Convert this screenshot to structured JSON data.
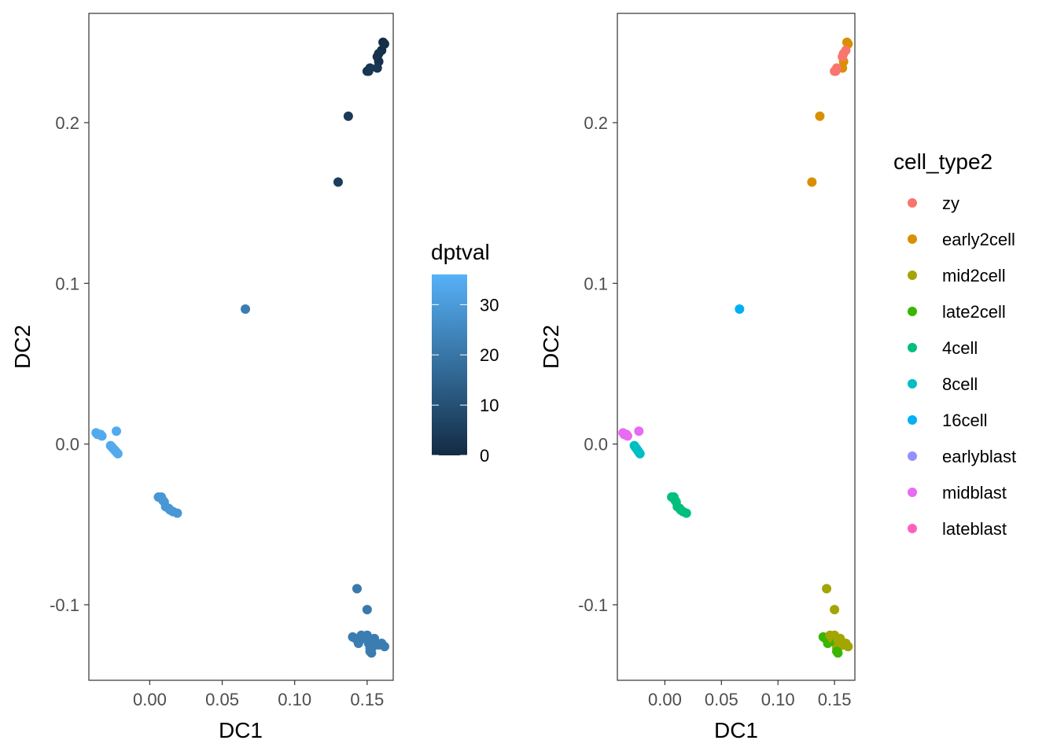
{
  "chart_data": [
    {
      "type": "scatter",
      "xlabel": "DC1",
      "ylabel": "DC2",
      "xlim": [
        -0.042,
        0.168
      ],
      "ylim": [
        -0.147,
        0.268
      ],
      "xticks": [
        0.0,
        0.05,
        0.1,
        0.15
      ],
      "xtick_labels": [
        "0.00",
        "0.05",
        "0.10",
        "0.15"
      ],
      "yticks": [
        -0.1,
        0.0,
        0.1,
        0.2
      ],
      "ytick_labels": [
        "-0.1",
        "0.0",
        "0.1",
        "0.2"
      ],
      "grid": false,
      "color_by": "dptval",
      "legend": {
        "type": "colorbar",
        "title": "dptval",
        "range": [
          0,
          36
        ],
        "ticks": [
          0,
          10,
          20,
          30
        ],
        "tick_labels": [
          "0",
          "10",
          "20",
          "30"
        ],
        "low_color": "#132b43",
        "high_color": "#56b1f7",
        "placement": "right"
      },
      "points": [
        {
          "x": 0.161,
          "y": 0.25,
          "v": 0
        },
        {
          "x": 0.162,
          "y": 0.249,
          "v": 1
        },
        {
          "x": 0.16,
          "y": 0.245,
          "v": 1
        },
        {
          "x": 0.158,
          "y": 0.243,
          "v": 2
        },
        {
          "x": 0.157,
          "y": 0.241,
          "v": 2
        },
        {
          "x": 0.158,
          "y": 0.238,
          "v": 2
        },
        {
          "x": 0.157,
          "y": 0.234,
          "v": 3
        },
        {
          "x": 0.152,
          "y": 0.234,
          "v": 3
        },
        {
          "x": 0.15,
          "y": 0.232,
          "v": 3
        },
        {
          "x": 0.151,
          "y": 0.232,
          "v": 3
        },
        {
          "x": 0.137,
          "y": 0.204,
          "v": 4
        },
        {
          "x": 0.13,
          "y": 0.163,
          "v": 5
        },
        {
          "x": 0.066,
          "y": 0.084,
          "v": 22
        },
        {
          "x": 0.143,
          "y": -0.09,
          "v": 21
        },
        {
          "x": 0.15,
          "y": -0.103,
          "v": 21
        },
        {
          "x": 0.14,
          "y": -0.12,
          "v": 22
        },
        {
          "x": 0.142,
          "y": -0.121,
          "v": 22
        },
        {
          "x": 0.144,
          "y": -0.124,
          "v": 22
        },
        {
          "x": 0.146,
          "y": -0.119,
          "v": 22
        },
        {
          "x": 0.148,
          "y": -0.121,
          "v": 22
        },
        {
          "x": 0.15,
          "y": -0.119,
          "v": 22
        },
        {
          "x": 0.151,
          "y": -0.124,
          "v": 22
        },
        {
          "x": 0.152,
          "y": -0.127,
          "v": 22
        },
        {
          "x": 0.153,
          "y": -0.122,
          "v": 22
        },
        {
          "x": 0.154,
          "y": -0.126,
          "v": 22
        },
        {
          "x": 0.155,
          "y": -0.121,
          "v": 22
        },
        {
          "x": 0.156,
          "y": -0.124,
          "v": 22
        },
        {
          "x": 0.158,
          "y": -0.125,
          "v": 22
        },
        {
          "x": 0.16,
          "y": -0.124,
          "v": 22
        },
        {
          "x": 0.162,
          "y": -0.126,
          "v": 22
        },
        {
          "x": 0.153,
          "y": -0.13,
          "v": 22
        },
        {
          "x": 0.152,
          "y": -0.129,
          "v": 22
        },
        {
          "x": 0.006,
          "y": -0.033,
          "v": 29
        },
        {
          "x": 0.008,
          "y": -0.033,
          "v": 29
        },
        {
          "x": 0.009,
          "y": -0.035,
          "v": 29
        },
        {
          "x": 0.01,
          "y": -0.036,
          "v": 29
        },
        {
          "x": 0.011,
          "y": -0.039,
          "v": 29
        },
        {
          "x": 0.013,
          "y": -0.04,
          "v": 29
        },
        {
          "x": 0.014,
          "y": -0.041,
          "v": 29
        },
        {
          "x": 0.016,
          "y": -0.042,
          "v": 29
        },
        {
          "x": 0.019,
          "y": -0.043,
          "v": 29
        },
        {
          "x": -0.037,
          "y": 0.007,
          "v": 34
        },
        {
          "x": -0.036,
          "y": 0.006,
          "v": 34
        },
        {
          "x": -0.035,
          "y": 0.006,
          "v": 34
        },
        {
          "x": -0.034,
          "y": 0.006,
          "v": 34
        },
        {
          "x": -0.033,
          "y": 0.005,
          "v": 34
        },
        {
          "x": -0.023,
          "y": 0.008,
          "v": 34
        },
        {
          "x": -0.027,
          "y": -0.001,
          "v": 34
        },
        {
          "x": -0.026,
          "y": -0.002,
          "v": 34
        },
        {
          "x": -0.025,
          "y": -0.003,
          "v": 34
        },
        {
          "x": -0.024,
          "y": -0.004,
          "v": 34
        },
        {
          "x": -0.023,
          "y": -0.005,
          "v": 34
        },
        {
          "x": -0.022,
          "y": -0.006,
          "v": 34
        }
      ]
    },
    {
      "type": "scatter",
      "xlabel": "DC1",
      "ylabel": "DC2",
      "xlim": [
        -0.042,
        0.168
      ],
      "ylim": [
        -0.147,
        0.268
      ],
      "xticks": [
        0.0,
        0.05,
        0.1,
        0.15
      ],
      "xtick_labels": [
        "0.00",
        "0.05",
        "0.10",
        "0.15"
      ],
      "yticks": [
        -0.1,
        0.0,
        0.1,
        0.2
      ],
      "ytick_labels": [
        "-0.1",
        "0.0",
        "0.1",
        "0.2"
      ],
      "grid": false,
      "color_by": "cell_type2",
      "legend": {
        "type": "categorical",
        "title": "cell_type2",
        "placement": "right",
        "entries": [
          {
            "label": "zy",
            "color": "#F8766D"
          },
          {
            "label": "early2cell",
            "color": "#D89000"
          },
          {
            "label": "mid2cell",
            "color": "#A3A500"
          },
          {
            "label": "late2cell",
            "color": "#39B600"
          },
          {
            "label": "4cell",
            "color": "#00BF7D"
          },
          {
            "label": "8cell",
            "color": "#00BFC4"
          },
          {
            "label": "16cell",
            "color": "#00B0F6"
          },
          {
            "label": "earlyblast",
            "color": "#9590FF"
          },
          {
            "label": "midblast",
            "color": "#E76BF3"
          },
          {
            "label": "lateblast",
            "color": "#FF62BC"
          }
        ]
      },
      "points": [
        {
          "x": 0.161,
          "y": 0.25,
          "c": "early2cell"
        },
        {
          "x": 0.162,
          "y": 0.249,
          "c": "early2cell"
        },
        {
          "x": 0.158,
          "y": 0.238,
          "c": "early2cell"
        },
        {
          "x": 0.157,
          "y": 0.234,
          "c": "early2cell"
        },
        {
          "x": 0.16,
          "y": 0.245,
          "c": "zy"
        },
        {
          "x": 0.158,
          "y": 0.243,
          "c": "zy"
        },
        {
          "x": 0.157,
          "y": 0.241,
          "c": "zy"
        },
        {
          "x": 0.152,
          "y": 0.234,
          "c": "zy"
        },
        {
          "x": 0.15,
          "y": 0.232,
          "c": "zy"
        },
        {
          "x": 0.151,
          "y": 0.232,
          "c": "zy"
        },
        {
          "x": 0.137,
          "y": 0.204,
          "c": "early2cell"
        },
        {
          "x": 0.13,
          "y": 0.163,
          "c": "early2cell"
        },
        {
          "x": 0.066,
          "y": 0.084,
          "c": "16cell"
        },
        {
          "x": 0.143,
          "y": -0.09,
          "c": "mid2cell"
        },
        {
          "x": 0.15,
          "y": -0.103,
          "c": "mid2cell"
        },
        {
          "x": 0.14,
          "y": -0.12,
          "c": "late2cell"
        },
        {
          "x": 0.142,
          "y": -0.121,
          "c": "late2cell"
        },
        {
          "x": 0.144,
          "y": -0.124,
          "c": "late2cell"
        },
        {
          "x": 0.146,
          "y": -0.119,
          "c": "mid2cell"
        },
        {
          "x": 0.148,
          "y": -0.121,
          "c": "mid2cell"
        },
        {
          "x": 0.15,
          "y": -0.119,
          "c": "mid2cell"
        },
        {
          "x": 0.151,
          "y": -0.124,
          "c": "late2cell"
        },
        {
          "x": 0.152,
          "y": -0.127,
          "c": "mid2cell"
        },
        {
          "x": 0.153,
          "y": -0.122,
          "c": "mid2cell"
        },
        {
          "x": 0.154,
          "y": -0.126,
          "c": "mid2cell"
        },
        {
          "x": 0.155,
          "y": -0.121,
          "c": "mid2cell"
        },
        {
          "x": 0.156,
          "y": -0.124,
          "c": "mid2cell"
        },
        {
          "x": 0.158,
          "y": -0.125,
          "c": "mid2cell"
        },
        {
          "x": 0.16,
          "y": -0.124,
          "c": "mid2cell"
        },
        {
          "x": 0.162,
          "y": -0.126,
          "c": "mid2cell"
        },
        {
          "x": 0.153,
          "y": -0.13,
          "c": "late2cell"
        },
        {
          "x": 0.152,
          "y": -0.129,
          "c": "late2cell"
        },
        {
          "x": 0.006,
          "y": -0.033,
          "c": "4cell"
        },
        {
          "x": 0.008,
          "y": -0.033,
          "c": "4cell"
        },
        {
          "x": 0.009,
          "y": -0.035,
          "c": "4cell"
        },
        {
          "x": 0.01,
          "y": -0.036,
          "c": "4cell"
        },
        {
          "x": 0.011,
          "y": -0.039,
          "c": "4cell"
        },
        {
          "x": 0.013,
          "y": -0.04,
          "c": "4cell"
        },
        {
          "x": 0.014,
          "y": -0.041,
          "c": "4cell"
        },
        {
          "x": 0.016,
          "y": -0.042,
          "c": "4cell"
        },
        {
          "x": 0.019,
          "y": -0.043,
          "c": "4cell"
        },
        {
          "x": -0.037,
          "y": 0.007,
          "c": "midblast"
        },
        {
          "x": -0.036,
          "y": 0.006,
          "c": "midblast"
        },
        {
          "x": -0.035,
          "y": 0.006,
          "c": "midblast"
        },
        {
          "x": -0.034,
          "y": 0.006,
          "c": "midblast"
        },
        {
          "x": -0.033,
          "y": 0.005,
          "c": "midblast"
        },
        {
          "x": -0.023,
          "y": 0.008,
          "c": "midblast"
        },
        {
          "x": -0.027,
          "y": -0.001,
          "c": "8cell"
        },
        {
          "x": -0.026,
          "y": -0.002,
          "c": "8cell"
        },
        {
          "x": -0.025,
          "y": -0.003,
          "c": "8cell"
        },
        {
          "x": -0.024,
          "y": -0.004,
          "c": "8cell"
        },
        {
          "x": -0.023,
          "y": -0.005,
          "c": "8cell"
        },
        {
          "x": -0.022,
          "y": -0.006,
          "c": "8cell"
        }
      ]
    }
  ]
}
